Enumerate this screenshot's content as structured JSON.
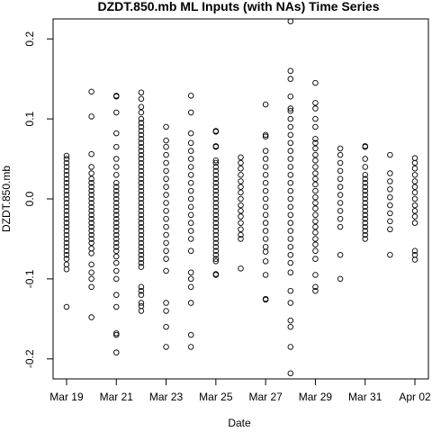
{
  "chart_data": {
    "type": "scatter",
    "title": "DZDT.850.mb ML Inputs (with NAs) Time Series",
    "xlabel": "Date",
    "ylabel": "DZDT.850.mb",
    "x_ticks": [
      "Mar 19",
      "Mar 21",
      "Mar 23",
      "Mar 25",
      "Mar 27",
      "Mar 29",
      "Mar 31",
      "Apr 02"
    ],
    "x_tick_dates": [
      "2018-03-19",
      "2018-03-21",
      "2018-03-23",
      "2018-03-25",
      "2018-03-27",
      "2018-03-29",
      "2018-03-31",
      "2018-04-02"
    ],
    "y_ticks": [
      -0.2,
      -0.1,
      0.0,
      0.1,
      0.2
    ],
    "y_tick_labels": [
      "-0.2",
      "-0.1",
      "0.0",
      "0.1",
      "0.2"
    ],
    "xlim": [
      "2018-03-18 11:00",
      "2018-04-02 13:00"
    ],
    "ylim": [
      -0.225,
      0.225
    ],
    "grid": false,
    "legend": "none",
    "marker": "open-circle",
    "series_color": "#000000",
    "series": [
      {
        "date": "2018-03-19",
        "values": [
          0.054,
          0.05,
          0.045,
          0.04,
          0.035,
          0.03,
          0.025,
          0.02,
          0.015,
          0.01,
          0.005,
          0.0,
          -0.005,
          -0.01,
          -0.015,
          -0.02,
          -0.025,
          -0.03,
          -0.035,
          -0.04,
          -0.045,
          -0.05,
          -0.055,
          -0.06,
          -0.065,
          -0.07,
          -0.075,
          -0.082,
          -0.088,
          -0.135
        ]
      },
      {
        "date": "2018-03-20",
        "values": [
          0.134,
          0.103,
          0.056,
          0.04,
          0.032,
          0.025,
          0.02,
          0.015,
          0.01,
          0.005,
          0.0,
          -0.005,
          -0.01,
          -0.015,
          -0.02,
          -0.025,
          -0.03,
          -0.035,
          -0.04,
          -0.045,
          -0.05,
          -0.055,
          -0.062,
          -0.068,
          -0.082,
          -0.092,
          -0.1,
          -0.11,
          -0.148
        ]
      },
      {
        "date": "2018-03-21",
        "values": [
          0.129,
          0.128,
          0.108,
          0.082,
          0.065,
          0.05,
          0.04,
          0.03,
          0.02,
          0.015,
          0.01,
          0.005,
          0.0,
          -0.005,
          -0.01,
          -0.015,
          -0.02,
          -0.025,
          -0.03,
          -0.035,
          -0.04,
          -0.045,
          -0.05,
          -0.055,
          -0.06,
          -0.065,
          -0.072,
          -0.08,
          -0.09,
          -0.1,
          -0.12,
          -0.135,
          -0.168,
          -0.17,
          -0.192
        ]
      },
      {
        "date": "2018-03-22",
        "values": [
          0.133,
          0.125,
          0.115,
          0.108,
          0.1,
          0.095,
          0.09,
          0.085,
          0.08,
          0.075,
          0.07,
          0.065,
          0.06,
          0.055,
          0.05,
          0.045,
          0.04,
          0.035,
          0.03,
          0.025,
          0.02,
          0.015,
          0.01,
          0.005,
          0.0,
          -0.005,
          -0.01,
          -0.015,
          -0.02,
          -0.025,
          -0.03,
          -0.035,
          -0.04,
          -0.045,
          -0.05,
          -0.055,
          -0.06,
          -0.065,
          -0.07,
          -0.075,
          -0.08,
          -0.085,
          -0.11,
          -0.115,
          -0.12,
          -0.13,
          -0.134,
          -0.14
        ]
      },
      {
        "date": "2018-03-23",
        "values": [
          0.09,
          0.073,
          0.065,
          0.055,
          0.045,
          0.035,
          0.025,
          0.015,
          0.005,
          -0.005,
          -0.015,
          -0.025,
          -0.035,
          -0.045,
          -0.055,
          -0.065,
          -0.075,
          -0.09,
          -0.13,
          -0.14,
          -0.16,
          -0.185
        ]
      },
      {
        "date": "2018-03-24",
        "values": [
          0.129,
          0.108,
          0.082,
          0.07,
          0.06,
          0.05,
          0.04,
          0.03,
          0.02,
          0.01,
          0.0,
          -0.01,
          -0.02,
          -0.03,
          -0.04,
          -0.05,
          -0.065,
          -0.092,
          -0.1,
          -0.11,
          -0.13,
          -0.17,
          -0.185
        ]
      },
      {
        "date": "2018-03-25",
        "values": [
          0.085,
          0.084,
          0.066,
          0.065,
          0.048,
          0.045,
          0.04,
          0.035,
          0.03,
          0.025,
          0.02,
          0.015,
          0.01,
          0.005,
          0.0,
          -0.005,
          -0.01,
          -0.015,
          -0.02,
          -0.025,
          -0.03,
          -0.035,
          -0.04,
          -0.045,
          -0.05,
          -0.055,
          -0.06,
          -0.065,
          -0.07,
          -0.075,
          -0.078,
          -0.094,
          -0.095
        ]
      },
      {
        "date": "2018-03-26",
        "values": [
          0.052,
          0.045,
          0.038,
          0.03,
          0.022,
          0.015,
          0.008,
          0.0,
          -0.008,
          -0.015,
          -0.022,
          -0.03,
          -0.038,
          -0.045,
          -0.05,
          -0.087
        ]
      },
      {
        "date": "2018-03-27",
        "values": [
          0.118,
          0.08,
          0.078,
          0.06,
          0.05,
          0.04,
          0.03,
          0.02,
          0.01,
          0.0,
          -0.01,
          -0.02,
          -0.03,
          -0.04,
          -0.05,
          -0.06,
          -0.066,
          -0.078,
          -0.095,
          -0.125,
          -0.126
        ]
      },
      {
        "date": "2018-03-28",
        "values": [
          0.222,
          0.16,
          0.15,
          0.128,
          0.113,
          0.11,
          0.1,
          0.09,
          0.08,
          0.07,
          0.06,
          0.05,
          0.04,
          0.03,
          0.02,
          0.01,
          0.0,
          -0.01,
          -0.02,
          -0.03,
          -0.04,
          -0.05,
          -0.06,
          -0.07,
          -0.08,
          -0.092,
          -0.115,
          -0.13,
          -0.152,
          -0.16,
          -0.185,
          -0.218
        ]
      },
      {
        "date": "2018-03-29",
        "values": [
          0.145,
          0.12,
          0.113,
          0.1,
          0.09,
          0.075,
          0.07,
          0.063,
          0.055,
          0.048,
          0.04,
          0.032,
          0.025,
          0.018,
          0.01,
          0.002,
          -0.005,
          -0.012,
          -0.02,
          -0.028,
          -0.035,
          -0.042,
          -0.05,
          -0.057,
          -0.065,
          -0.075,
          -0.095,
          -0.11,
          -0.115
        ]
      },
      {
        "date": "2018-03-30",
        "values": [
          0.063,
          0.055,
          0.045,
          0.035,
          0.025,
          0.015,
          0.005,
          -0.005,
          -0.015,
          -0.025,
          -0.035,
          -0.07,
          -0.1
        ]
      },
      {
        "date": "2018-03-31",
        "values": [
          0.066,
          0.065,
          0.05,
          0.04,
          0.03,
          0.025,
          0.02,
          0.015,
          0.01,
          0.005,
          0.0,
          -0.005,
          -0.01,
          -0.015,
          -0.02,
          -0.025,
          -0.03,
          -0.035,
          -0.04,
          -0.045,
          -0.05
        ]
      },
      {
        "date": "2018-04-01",
        "values": [
          0.055,
          0.032,
          0.022,
          0.012,
          0.002,
          -0.008,
          -0.018,
          -0.028,
          -0.038,
          -0.07
        ]
      },
      {
        "date": "2018-04-02",
        "values": [
          0.051,
          0.045,
          0.038,
          0.03,
          0.022,
          0.015,
          0.008,
          0.0,
          -0.008,
          -0.015,
          -0.022,
          -0.03,
          -0.065,
          -0.07,
          -0.076
        ]
      }
    ]
  }
}
